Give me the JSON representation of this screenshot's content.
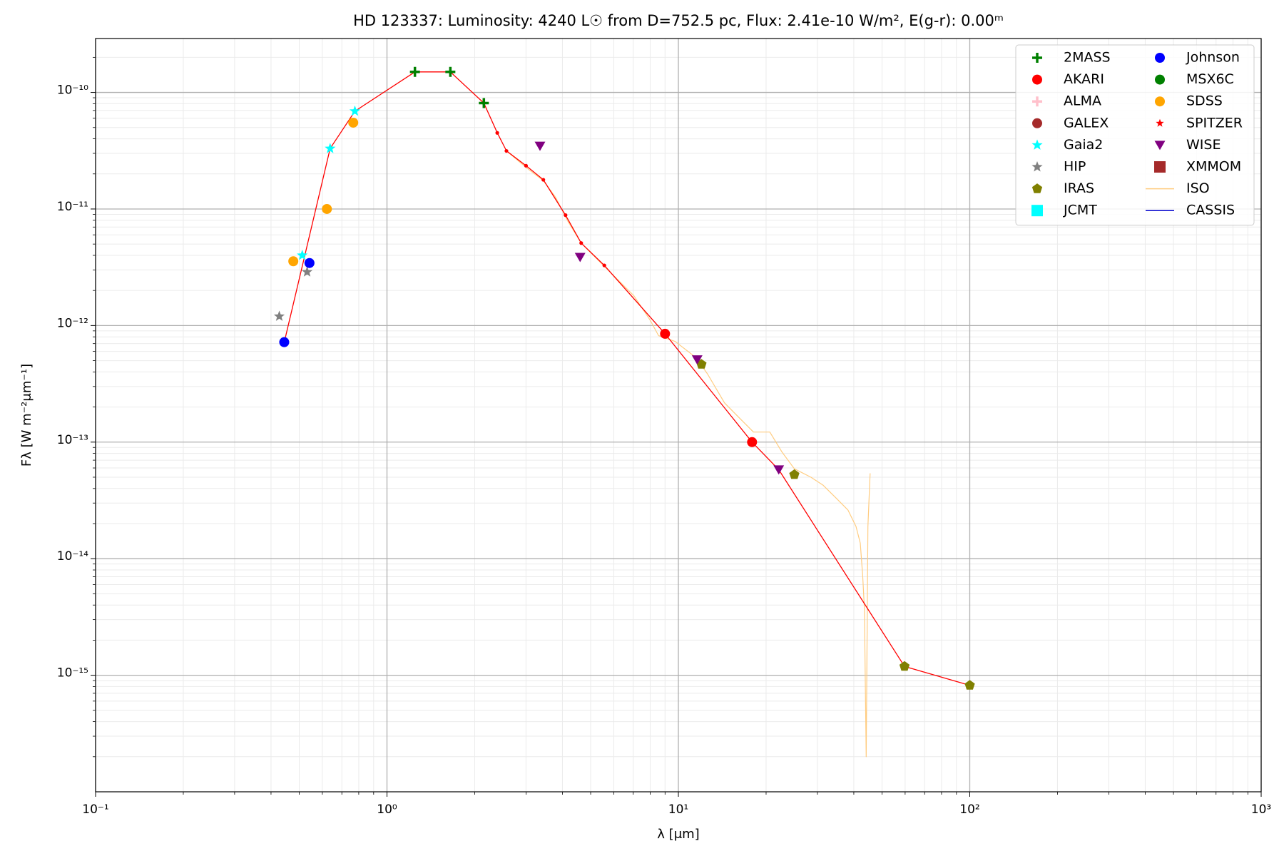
{
  "chart_data": {
    "type": "scatter",
    "title": "HD 123337:  Luminosity: 4240 L☉ from D=752.5 pc, Flux: 2.41e-10 W/m², E(g-r): 0.00ᵐ",
    "x_label": "λ [μm]",
    "y_label": "Fλ [W m⁻²μm⁻¹]",
    "log_x": true,
    "log_y": true,
    "grid": true,
    "minor_grid": true,
    "legend": "upper right",
    "legend_columns": 2,
    "xlim": [
      0.1,
      1000
    ],
    "ylim": [
      1e-16,
      2.9e-10
    ],
    "xticks": [
      {
        "value": 0.1,
        "label": "10⁻¹"
      },
      {
        "value": 1,
        "label": "10⁰"
      },
      {
        "value": 10,
        "label": "10¹"
      },
      {
        "value": 100,
        "label": "10²"
      },
      {
        "value": 1000,
        "label": "10³"
      }
    ],
    "yticks": [
      {
        "value": 1e-15,
        "label": "10⁻¹⁵"
      },
      {
        "value": 1e-14,
        "label": "10⁻¹⁴"
      },
      {
        "value": 1e-13,
        "label": "10⁻¹³"
      },
      {
        "value": 1e-12,
        "label": "10⁻¹²"
      },
      {
        "value": 1e-11,
        "label": "10⁻¹¹"
      },
      {
        "value": 1e-10,
        "label": "10⁻¹⁰"
      }
    ],
    "model": {
      "color": "#ff0000",
      "x": [
        0.444,
        0.638,
        0.776,
        1.247,
        1.65,
        2.15,
        2.39,
        2.57,
        3.0,
        3.44,
        4.1,
        4.64,
        5.57,
        9.0,
        17.9,
        22.1,
        59.7,
        100
      ],
      "values": [
        7.2e-13,
        3.3e-11,
        6.9e-11,
        1.5e-10,
        1.5e-10,
        8.1e-11,
        4.5e-11,
        3.15e-11,
        2.35e-11,
        1.78e-11,
        8.85e-12,
        5.1e-12,
        3.28e-12,
        8.5e-13,
        1e-13,
        5.8e-14,
        1.19e-15,
        8.2e-16
      ]
    },
    "series": [
      {
        "name": "2MASS",
        "color": "#008000",
        "marker": "plus",
        "x": [
          1.247,
          1.65,
          2.15
        ],
        "values": [
          1.5e-10,
          1.5e-10,
          8.1e-11
        ]
      },
      {
        "name": "AKARI",
        "color": "#ff0000",
        "marker": "circle",
        "x": [
          9.0,
          17.9
        ],
        "values": [
          8.5e-13,
          1e-13
        ]
      },
      {
        "name": "ALMA",
        "color": "#ffc0cb",
        "marker": "plus",
        "x": [],
        "values": []
      },
      {
        "name": "GALEX",
        "color": "#a52a2a",
        "marker": "circle",
        "x": [],
        "values": []
      },
      {
        "name": "Gaia2",
        "color": "#00ffff",
        "marker": "star",
        "x": [
          0.512,
          0.638,
          0.776
        ],
        "values": [
          4e-12,
          3.3e-11,
          6.9e-11
        ]
      },
      {
        "name": "HIP",
        "color": "#808080",
        "marker": "star",
        "x": [
          0.427,
          0.532
        ],
        "values": [
          1.2e-12,
          2.88e-12
        ]
      },
      {
        "name": "IRAS",
        "color": "#808000",
        "marker": "pentagon",
        "x": [
          12.0,
          25.0,
          59.7,
          100
        ],
        "values": [
          4.65e-13,
          5.26e-14,
          1.19e-15,
          8.2e-16
        ]
      },
      {
        "name": "JCMT",
        "color": "#00ffff",
        "marker": "square",
        "x": [],
        "values": []
      },
      {
        "name": "Johnson",
        "color": "#0000ff",
        "marker": "circle",
        "x": [
          0.444,
          0.542
        ],
        "values": [
          7.2e-13,
          3.44e-12
        ]
      },
      {
        "name": "MSX6C",
        "color": "#008000",
        "marker": "circle",
        "x": [],
        "values": []
      },
      {
        "name": "SDSS",
        "color": "#ffa500",
        "marker": "circle",
        "x": [
          0.477,
          0.622,
          0.766
        ],
        "values": [
          3.56e-12,
          1e-11,
          5.5e-11
        ]
      },
      {
        "name": "SPITZER",
        "color": "#ff0000",
        "marker": "smallstar",
        "x": [],
        "values": []
      },
      {
        "name": "WISE",
        "color": "#800080",
        "marker": "triangle-down",
        "x": [
          3.35,
          4.6,
          11.6,
          22.1
        ],
        "values": [
          3.47e-11,
          3.86e-12,
          5.1e-13,
          5.8e-14
        ]
      },
      {
        "name": "XMMOM",
        "color": "#a52a2a",
        "marker": "square",
        "x": [],
        "values": []
      },
      {
        "name": "ISO",
        "color": "#ffcc80",
        "marker": "line",
        "x": [
          2.57,
          3.02,
          3.44,
          3.79,
          4.18,
          4.64,
          5.79,
          7.04,
          8.02,
          8.55,
          9.75,
          11.5,
          12.6,
          14.4,
          16.4,
          18.1,
          20.6,
          22.7,
          25.0,
          28.5,
          31.4,
          34.7,
          38.2,
          40.7,
          42.1,
          42.9,
          43.5,
          44.1,
          44.7,
          45.5
        ],
        "values": [
          3.15e-11,
          2.24e-11,
          1.75e-11,
          1.26e-11,
          7.8e-12,
          5.1e-12,
          2.92e-12,
          1.8e-12,
          1.1e-12,
          8.2e-13,
          7.3e-13,
          5.3e-13,
          3.83e-13,
          2.17e-13,
          1.56e-13,
          1.22e-13,
          1.22e-13,
          8.2e-14,
          5.9e-14,
          5e-14,
          4.26e-14,
          3.33e-14,
          2.61e-14,
          1.89e-14,
          1.36e-14,
          7.1e-15,
          3.7e-15,
          2e-16,
          1.89e-14,
          5.4e-14
        ]
      },
      {
        "name": "CASSIS",
        "color": "#0000cd",
        "marker": "line",
        "x": [],
        "values": []
      }
    ]
  }
}
